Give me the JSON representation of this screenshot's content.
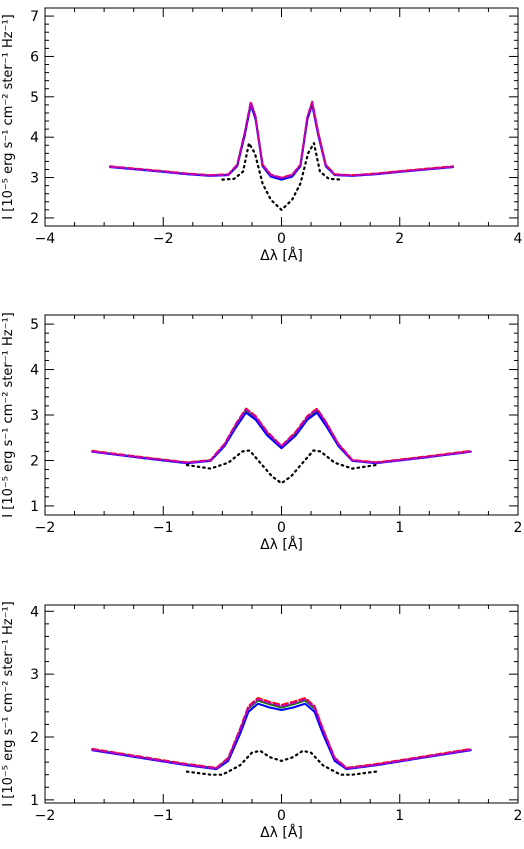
{
  "chart_data": [
    {
      "type": "line",
      "xlabel": "Δλ [Å]",
      "ylabel": "I [10⁻⁵ erg s⁻¹ cm⁻² ster⁻¹ Hz⁻¹]",
      "xlim": [
        -4,
        4
      ],
      "ylim": [
        1.8,
        7.2
      ],
      "xticks": [
        "−4",
        "−2",
        "0",
        "2",
        "4"
      ],
      "yticks": [
        "2",
        "3",
        "4",
        "5",
        "6",
        "7"
      ],
      "grid": false,
      "series": [
        {
          "style": "solid",
          "color": "#008000",
          "x": [
            -2.9,
            -2.0,
            -1.6,
            -1.2,
            -0.9,
            -0.75,
            -0.62,
            -0.52,
            -0.44,
            -0.32,
            -0.18,
            0.0,
            0.18,
            0.32,
            0.44,
            0.52,
            0.62,
            0.75,
            0.9,
            1.2,
            1.6,
            2.0,
            2.9
          ],
          "y": [
            3.27,
            3.15,
            3.09,
            3.05,
            3.07,
            3.3,
            4.1,
            4.85,
            4.5,
            3.3,
            3.05,
            2.98,
            3.05,
            3.3,
            4.5,
            4.85,
            4.1,
            3.3,
            3.07,
            3.05,
            3.09,
            3.15,
            3.27
          ]
        },
        {
          "style": "solid",
          "color": "#0000ff",
          "x": [
            -2.9,
            -2.0,
            -1.6,
            -1.2,
            -0.9,
            -0.75,
            -0.62,
            -0.52,
            -0.44,
            -0.32,
            -0.18,
            0.0,
            0.18,
            0.32,
            0.44,
            0.52,
            0.62,
            0.75,
            0.9,
            1.2,
            1.6,
            2.0,
            2.9
          ],
          "y": [
            3.26,
            3.14,
            3.08,
            3.04,
            3.06,
            3.28,
            4.05,
            4.8,
            4.45,
            3.28,
            3.02,
            2.95,
            3.02,
            3.28,
            4.45,
            4.8,
            4.05,
            3.28,
            3.06,
            3.04,
            3.08,
            3.14,
            3.26
          ]
        },
        {
          "style": "dashed",
          "color": "#ff0000",
          "x": [
            -2.9,
            -2.0,
            -1.6,
            -1.2,
            -0.9,
            -0.75,
            -0.62,
            -0.52,
            -0.44,
            -0.32,
            -0.18,
            0.0,
            0.18,
            0.32,
            0.44,
            0.52,
            0.62,
            0.75,
            0.9,
            1.2,
            1.6,
            2.0,
            2.9
          ],
          "y": [
            3.28,
            3.16,
            3.1,
            3.06,
            3.08,
            3.32,
            4.12,
            4.88,
            4.52,
            3.32,
            3.07,
            3.0,
            3.07,
            3.32,
            4.52,
            4.88,
            4.12,
            3.32,
            3.08,
            3.06,
            3.1,
            3.16,
            3.28
          ]
        },
        {
          "style": "dashed",
          "color": "#c000c0",
          "x": [
            -2.9,
            -2.0,
            -1.6,
            -1.2,
            -0.9,
            -0.75,
            -0.62,
            -0.52,
            -0.44,
            -0.32,
            -0.18,
            0.0,
            0.18,
            0.32,
            0.44,
            0.52,
            0.62,
            0.75,
            0.9,
            1.2,
            1.6,
            2.0,
            2.9
          ],
          "y": [
            3.27,
            3.15,
            3.09,
            3.05,
            3.07,
            3.31,
            4.11,
            4.86,
            4.51,
            3.31,
            3.06,
            2.99,
            3.06,
            3.31,
            4.51,
            4.86,
            4.11,
            3.31,
            3.07,
            3.05,
            3.09,
            3.15,
            3.27
          ]
        },
        {
          "style": "dotted",
          "color": "#000000",
          "x": [
            -1.0,
            -0.8,
            -0.65,
            -0.55,
            -0.45,
            -0.32,
            -0.18,
            0.0,
            0.18,
            0.32,
            0.45,
            0.55,
            0.65,
            0.8,
            1.0
          ],
          "y": [
            2.95,
            2.97,
            3.15,
            3.85,
            3.6,
            2.85,
            2.45,
            2.2,
            2.45,
            2.85,
            3.6,
            3.85,
            3.15,
            2.97,
            2.95
          ]
        }
      ]
    },
    {
      "type": "line",
      "xlabel": "Δλ [Å]",
      "ylabel": "I [10⁻⁵ erg s⁻¹ cm⁻² ster⁻¹ Hz⁻¹]",
      "xlim": [
        -2,
        2
      ],
      "ylim": [
        0.8,
        5.2
      ],
      "xticks": [
        "−2",
        "−1",
        "0",
        "1",
        "2"
      ],
      "yticks": [
        "1",
        "2",
        "3",
        "4",
        "5"
      ],
      "grid": false,
      "series": [
        {
          "style": "solid",
          "color": "#008000",
          "x": [
            -1.6,
            -1.2,
            -0.8,
            -0.6,
            -0.48,
            -0.38,
            -0.3,
            -0.22,
            -0.12,
            0.0,
            0.12,
            0.22,
            0.3,
            0.38,
            0.48,
            0.6,
            0.8,
            1.2,
            1.6
          ],
          "y": [
            2.2,
            2.07,
            1.95,
            2.0,
            2.35,
            2.8,
            3.1,
            2.95,
            2.6,
            2.3,
            2.6,
            2.95,
            3.1,
            2.8,
            2.35,
            2.0,
            1.95,
            2.07,
            2.2
          ]
        },
        {
          "style": "solid",
          "color": "#0000ff",
          "x": [
            -1.6,
            -1.2,
            -0.8,
            -0.6,
            -0.48,
            -0.38,
            -0.3,
            -0.22,
            -0.12,
            0.0,
            0.12,
            0.22,
            0.3,
            0.38,
            0.48,
            0.6,
            0.8,
            1.2,
            1.6
          ],
          "y": [
            2.19,
            2.06,
            1.94,
            1.99,
            2.32,
            2.75,
            3.05,
            2.9,
            2.55,
            2.27,
            2.55,
            2.9,
            3.05,
            2.75,
            2.32,
            1.99,
            1.94,
            2.06,
            2.19
          ]
        },
        {
          "style": "dashed",
          "color": "#ff0000",
          "x": [
            -1.6,
            -1.2,
            -0.8,
            -0.6,
            -0.48,
            -0.38,
            -0.3,
            -0.22,
            -0.12,
            0.0,
            0.12,
            0.22,
            0.3,
            0.38,
            0.48,
            0.6,
            0.8,
            1.2,
            1.6
          ],
          "y": [
            2.21,
            2.08,
            1.96,
            2.01,
            2.37,
            2.83,
            3.14,
            2.98,
            2.63,
            2.32,
            2.63,
            2.98,
            3.14,
            2.83,
            2.37,
            2.01,
            1.96,
            2.08,
            2.21
          ]
        },
        {
          "style": "dashed",
          "color": "#c000c0",
          "x": [
            -1.6,
            -1.2,
            -0.8,
            -0.6,
            -0.48,
            -0.38,
            -0.3,
            -0.22,
            -0.12,
            0.0,
            0.12,
            0.22,
            0.3,
            0.38,
            0.48,
            0.6,
            0.8,
            1.2,
            1.6
          ],
          "y": [
            2.2,
            2.07,
            1.95,
            2.0,
            2.36,
            2.82,
            3.12,
            2.96,
            2.61,
            2.31,
            2.61,
            2.96,
            3.12,
            2.82,
            2.36,
            2.0,
            1.95,
            2.07,
            2.2
          ]
        },
        {
          "style": "dotted",
          "color": "#000000",
          "x": [
            -0.8,
            -0.6,
            -0.45,
            -0.33,
            -0.27,
            -0.18,
            -0.08,
            0.0,
            0.08,
            0.18,
            0.27,
            0.33,
            0.45,
            0.6,
            0.8
          ],
          "y": [
            1.9,
            1.82,
            1.95,
            2.2,
            2.22,
            1.95,
            1.65,
            1.5,
            1.65,
            1.95,
            2.22,
            2.2,
            1.95,
            1.82,
            1.9
          ]
        }
      ]
    },
    {
      "type": "line",
      "xlabel": "Δλ [Å]",
      "ylabel": "I [10⁻⁵ erg s⁻¹ cm⁻² ster⁻¹ Hz⁻¹]",
      "xlim": [
        -2,
        2
      ],
      "ylim": [
        0.95,
        4.1
      ],
      "xticks": [
        "−2",
        "−1",
        "0",
        "1",
        "2"
      ],
      "yticks": [
        "1",
        "2",
        "3",
        "4"
      ],
      "grid": false,
      "series": [
        {
          "style": "solid",
          "color": "#008000",
          "x": [
            -1.6,
            -1.2,
            -0.8,
            -0.55,
            -0.45,
            -0.35,
            -0.28,
            -0.2,
            -0.1,
            0.0,
            0.1,
            0.2,
            0.28,
            0.35,
            0.45,
            0.55,
            0.8,
            1.2,
            1.6
          ],
          "y": [
            1.8,
            1.68,
            1.56,
            1.5,
            1.65,
            2.1,
            2.45,
            2.58,
            2.52,
            2.47,
            2.52,
            2.58,
            2.45,
            2.1,
            1.65,
            1.5,
            1.56,
            1.68,
            1.8
          ]
        },
        {
          "style": "solid",
          "color": "#0000ff",
          "x": [
            -1.6,
            -1.2,
            -0.8,
            -0.55,
            -0.45,
            -0.35,
            -0.28,
            -0.2,
            -0.1,
            0.0,
            0.1,
            0.2,
            0.28,
            0.35,
            0.45,
            0.55,
            0.8,
            1.2,
            1.6
          ],
          "y": [
            1.79,
            1.67,
            1.55,
            1.49,
            1.62,
            2.05,
            2.4,
            2.53,
            2.47,
            2.43,
            2.47,
            2.53,
            2.4,
            2.05,
            1.62,
            1.49,
            1.55,
            1.67,
            1.79
          ]
        },
        {
          "style": "dashed",
          "color": "#ff0000",
          "x": [
            -1.6,
            -1.2,
            -0.8,
            -0.55,
            -0.45,
            -0.35,
            -0.28,
            -0.2,
            -0.1,
            0.0,
            0.1,
            0.2,
            0.28,
            0.35,
            0.45,
            0.55,
            0.8,
            1.2,
            1.6
          ],
          "y": [
            1.81,
            1.69,
            1.57,
            1.51,
            1.67,
            2.13,
            2.49,
            2.62,
            2.56,
            2.51,
            2.56,
            2.62,
            2.49,
            2.13,
            1.67,
            1.51,
            1.57,
            1.69,
            1.81
          ]
        },
        {
          "style": "dashed",
          "color": "#c000c0",
          "x": [
            -1.6,
            -1.2,
            -0.8,
            -0.55,
            -0.45,
            -0.35,
            -0.28,
            -0.2,
            -0.1,
            0.0,
            0.1,
            0.2,
            0.28,
            0.35,
            0.45,
            0.55,
            0.8,
            1.2,
            1.6
          ],
          "y": [
            1.8,
            1.68,
            1.56,
            1.5,
            1.66,
            2.12,
            2.47,
            2.6,
            2.54,
            2.49,
            2.54,
            2.6,
            2.47,
            2.12,
            1.66,
            1.5,
            1.56,
            1.68,
            1.8
          ]
        },
        {
          "style": "dotted",
          "color": "#000000",
          "x": [
            -0.8,
            -0.6,
            -0.5,
            -0.35,
            -0.25,
            -0.18,
            -0.1,
            0.0,
            0.1,
            0.18,
            0.25,
            0.35,
            0.5,
            0.6,
            0.8
          ],
          "y": [
            1.45,
            1.4,
            1.4,
            1.55,
            1.75,
            1.78,
            1.68,
            1.62,
            1.68,
            1.78,
            1.75,
            1.55,
            1.4,
            1.4,
            1.45
          ]
        }
      ]
    }
  ]
}
